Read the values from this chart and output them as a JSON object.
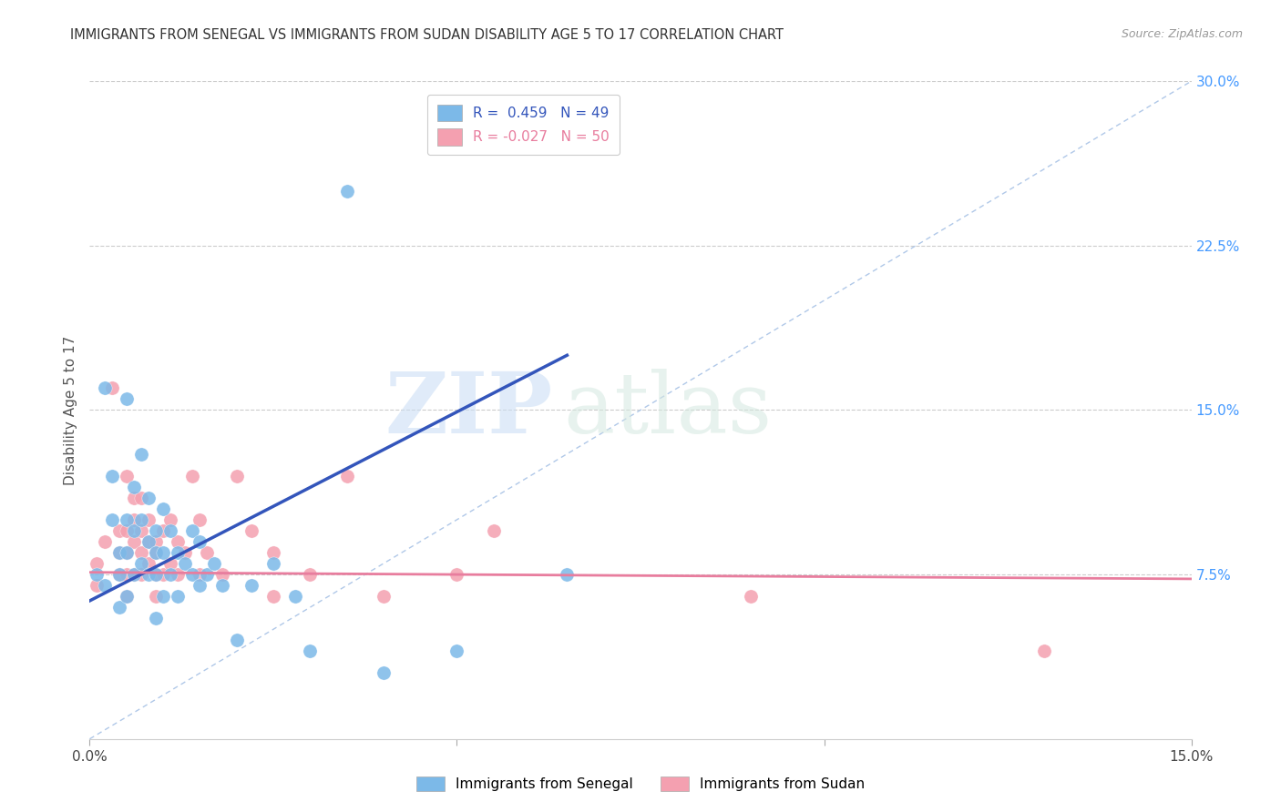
{
  "title": "IMMIGRANTS FROM SENEGAL VS IMMIGRANTS FROM SUDAN DISABILITY AGE 5 TO 17 CORRELATION CHART",
  "source": "Source: ZipAtlas.com",
  "ylabel": "Disability Age 5 to 17",
  "xlim": [
    0.0,
    0.15
  ],
  "ylim": [
    0.0,
    0.3
  ],
  "senegal_color": "#7cb9e8",
  "sudan_color": "#f4a0b0",
  "senegal_line_color": "#3355bb",
  "sudan_line_color": "#e87d9e",
  "diagonal_color": "#b0c8e8",
  "R_senegal": 0.459,
  "N_senegal": 49,
  "R_sudan": -0.027,
  "N_sudan": 50,
  "watermark_zip": "ZIP",
  "watermark_atlas": "atlas",
  "senegal_points_x": [
    0.001,
    0.002,
    0.002,
    0.003,
    0.003,
    0.004,
    0.004,
    0.004,
    0.005,
    0.005,
    0.005,
    0.005,
    0.006,
    0.006,
    0.006,
    0.007,
    0.007,
    0.007,
    0.008,
    0.008,
    0.008,
    0.009,
    0.009,
    0.009,
    0.009,
    0.01,
    0.01,
    0.01,
    0.011,
    0.011,
    0.012,
    0.012,
    0.013,
    0.014,
    0.014,
    0.015,
    0.015,
    0.016,
    0.017,
    0.018,
    0.02,
    0.022,
    0.025,
    0.028,
    0.03,
    0.035,
    0.04,
    0.05,
    0.065
  ],
  "senegal_points_y": [
    0.075,
    0.16,
    0.07,
    0.12,
    0.1,
    0.085,
    0.075,
    0.06,
    0.155,
    0.1,
    0.085,
    0.065,
    0.115,
    0.095,
    0.075,
    0.13,
    0.1,
    0.08,
    0.11,
    0.09,
    0.075,
    0.095,
    0.085,
    0.075,
    0.055,
    0.105,
    0.085,
    0.065,
    0.095,
    0.075,
    0.085,
    0.065,
    0.08,
    0.095,
    0.075,
    0.09,
    0.07,
    0.075,
    0.08,
    0.07,
    0.045,
    0.07,
    0.08,
    0.065,
    0.04,
    0.25,
    0.03,
    0.04,
    0.075
  ],
  "sudan_points_x": [
    0.001,
    0.001,
    0.002,
    0.003,
    0.004,
    0.004,
    0.004,
    0.005,
    0.005,
    0.005,
    0.005,
    0.005,
    0.006,
    0.006,
    0.006,
    0.006,
    0.007,
    0.007,
    0.007,
    0.007,
    0.008,
    0.008,
    0.008,
    0.009,
    0.009,
    0.009,
    0.009,
    0.01,
    0.01,
    0.011,
    0.011,
    0.012,
    0.012,
    0.013,
    0.014,
    0.015,
    0.015,
    0.016,
    0.018,
    0.02,
    0.022,
    0.025,
    0.025,
    0.03,
    0.035,
    0.04,
    0.05,
    0.055,
    0.09,
    0.13
  ],
  "sudan_points_y": [
    0.08,
    0.07,
    0.09,
    0.16,
    0.095,
    0.085,
    0.075,
    0.12,
    0.095,
    0.085,
    0.075,
    0.065,
    0.11,
    0.1,
    0.09,
    0.075,
    0.11,
    0.095,
    0.085,
    0.075,
    0.1,
    0.09,
    0.08,
    0.09,
    0.085,
    0.075,
    0.065,
    0.095,
    0.075,
    0.1,
    0.08,
    0.09,
    0.075,
    0.085,
    0.12,
    0.1,
    0.075,
    0.085,
    0.075,
    0.12,
    0.095,
    0.085,
    0.065,
    0.075,
    0.12,
    0.065,
    0.075,
    0.095,
    0.065,
    0.04
  ],
  "background_color": "#ffffff",
  "grid_color": "#cccccc",
  "title_color": "#333333",
  "right_axis_color": "#4499ff",
  "senegal_trend_x0": 0.0,
  "senegal_trend_y0": 0.063,
  "senegal_trend_x1": 0.065,
  "senegal_trend_y1": 0.175,
  "sudan_trend_x0": 0.0,
  "sudan_trend_y0": 0.076,
  "sudan_trend_x1": 0.15,
  "sudan_trend_y1": 0.073
}
